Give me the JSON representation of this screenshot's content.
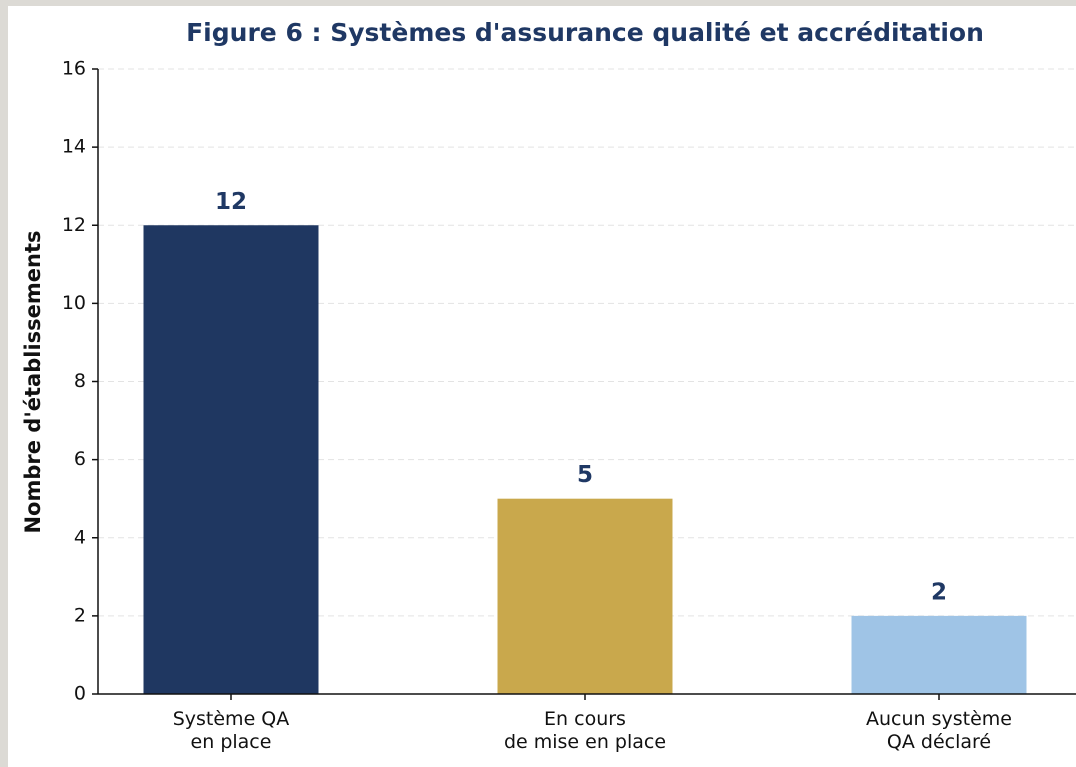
{
  "chart_data": {
    "type": "bar",
    "title": "Figure 6 : Systèmes d'assurance qualité et accréditation",
    "y_label": "Nombre d'établissements",
    "categories": [
      "Système QA\nen place",
      "En cours\nde mise en place",
      "Aucun système\nQA déclaré"
    ],
    "values": [
      12,
      5,
      2
    ],
    "colors": [
      "#1f3761",
      "#c9a84c",
      "#9fc4e6"
    ],
    "ylim": [
      0,
      16
    ],
    "yticks": [
      0,
      2,
      4,
      6,
      8,
      10,
      12,
      14,
      16
    ],
    "grid": true
  }
}
